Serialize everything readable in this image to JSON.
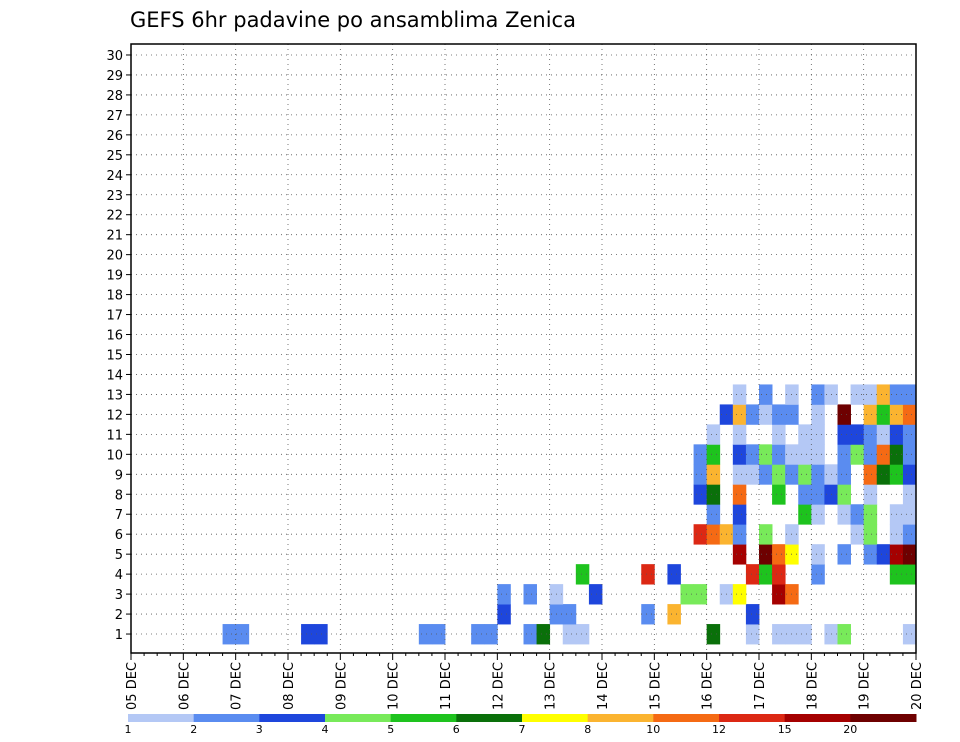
{
  "chart_data": {
    "type": "heatmap",
    "title": "GEFS 6hr padavine po ansamblima Zenica",
    "members": [
      1,
      2,
      3,
      4,
      5,
      6,
      7,
      8,
      9,
      10,
      11,
      12,
      13,
      14,
      15,
      16,
      17,
      18,
      19,
      20,
      21,
      22,
      23,
      24,
      25,
      26,
      27,
      28,
      29,
      30
    ],
    "x_labels": [
      "05 DEC",
      "06 DEC",
      "07 DEC",
      "08 DEC",
      "09 DEC",
      "10 DEC",
      "11 DEC",
      "12 DEC",
      "13 DEC",
      "14 DEC",
      "15 DEC",
      "16 DEC",
      "17 DEC",
      "18 DEC",
      "19 DEC",
      "20 DEC"
    ],
    "x_range_steps": [
      0,
      60
    ],
    "grid": true,
    "colorbar": {
      "ticks": [
        "1",
        "2",
        "3",
        "4",
        "5",
        "6",
        "7",
        "8",
        "10",
        "12",
        "15",
        "20"
      ],
      "colors": [
        "#b4c8f5",
        "#5a8cf0",
        "#1e46dc",
        "#78ea5a",
        "#1ec31e",
        "#0a700a",
        "#ffff00",
        "#fbb430",
        "#f56a14",
        "#dc2814",
        "#a50000",
        "#6e0000"
      ]
    },
    "cells": [
      [
        1,
        8,
        2
      ],
      [
        1,
        9,
        2
      ],
      [
        1,
        14,
        3
      ],
      [
        1,
        15,
        3
      ],
      [
        1,
        23,
        2
      ],
      [
        1,
        24,
        2
      ],
      [
        1,
        27,
        2
      ],
      [
        1,
        28,
        2
      ],
      [
        1,
        31,
        2
      ],
      [
        1,
        32,
        6
      ],
      [
        1,
        34,
        1
      ],
      [
        1,
        35,
        1
      ],
      [
        1,
        45,
        6
      ],
      [
        1,
        48,
        1
      ],
      [
        1,
        50,
        1
      ],
      [
        1,
        51,
        1
      ],
      [
        1,
        52,
        1
      ],
      [
        1,
        54,
        1
      ],
      [
        1,
        55,
        4
      ],
      [
        1,
        60,
        1
      ],
      [
        2,
        29,
        3
      ],
      [
        2,
        33,
        2
      ],
      [
        2,
        34,
        2
      ],
      [
        2,
        40,
        2
      ],
      [
        2,
        42,
        8
      ],
      [
        2,
        48,
        3
      ],
      [
        3,
        29,
        2
      ],
      [
        3,
        31,
        2
      ],
      [
        3,
        33,
        1
      ],
      [
        3,
        36,
        3
      ],
      [
        3,
        43,
        4
      ],
      [
        3,
        44,
        4
      ],
      [
        3,
        46,
        1
      ],
      [
        3,
        47,
        7
      ],
      [
        3,
        50,
        11
      ],
      [
        3,
        51,
        9
      ],
      [
        4,
        35,
        5
      ],
      [
        4,
        40,
        10
      ],
      [
        4,
        42,
        3
      ],
      [
        4,
        48,
        10
      ],
      [
        4,
        49,
        5
      ],
      [
        4,
        50,
        10
      ],
      [
        4,
        53,
        2
      ],
      [
        4,
        59,
        5
      ],
      [
        4,
        60,
        5
      ],
      [
        5,
        47,
        11
      ],
      [
        5,
        49,
        12
      ],
      [
        5,
        50,
        9
      ],
      [
        5,
        51,
        7
      ],
      [
        5,
        53,
        1
      ],
      [
        5,
        55,
        2
      ],
      [
        5,
        57,
        2
      ],
      [
        5,
        58,
        3
      ],
      [
        5,
        59,
        11
      ],
      [
        5,
        60,
        12
      ],
      [
        6,
        44,
        10
      ],
      [
        6,
        45,
        9
      ],
      [
        6,
        46,
        8
      ],
      [
        6,
        47,
        2
      ],
      [
        6,
        49,
        4
      ],
      [
        6,
        51,
        1
      ],
      [
        6,
        56,
        1
      ],
      [
        6,
        57,
        4
      ],
      [
        6,
        59,
        1
      ],
      [
        6,
        60,
        2
      ],
      [
        7,
        45,
        2
      ],
      [
        7,
        47,
        3
      ],
      [
        7,
        52,
        5
      ],
      [
        7,
        53,
        1
      ],
      [
        7,
        55,
        1
      ],
      [
        7,
        56,
        2
      ],
      [
        7,
        57,
        4
      ],
      [
        7,
        59,
        1
      ],
      [
        7,
        60,
        1
      ],
      [
        8,
        44,
        3
      ],
      [
        8,
        45,
        6
      ],
      [
        8,
        47,
        9
      ],
      [
        8,
        50,
        5
      ],
      [
        8,
        52,
        2
      ],
      [
        8,
        53,
        2
      ],
      [
        8,
        54,
        3
      ],
      [
        8,
        55,
        4
      ],
      [
        8,
        57,
        1
      ],
      [
        8,
        60,
        1
      ],
      [
        9,
        44,
        2
      ],
      [
        9,
        45,
        8
      ],
      [
        9,
        47,
        1
      ],
      [
        9,
        48,
        1
      ],
      [
        9,
        49,
        2
      ],
      [
        9,
        50,
        4
      ],
      [
        9,
        51,
        2
      ],
      [
        9,
        52,
        4
      ],
      [
        9,
        53,
        2
      ],
      [
        9,
        54,
        1
      ],
      [
        9,
        55,
        2
      ],
      [
        9,
        57,
        9
      ],
      [
        9,
        58,
        6
      ],
      [
        9,
        59,
        5
      ],
      [
        9,
        60,
        3
      ],
      [
        10,
        44,
        2
      ],
      [
        10,
        45,
        5
      ],
      [
        10,
        47,
        3
      ],
      [
        10,
        48,
        2
      ],
      [
        10,
        49,
        4
      ],
      [
        10,
        50,
        2
      ],
      [
        10,
        51,
        1
      ],
      [
        10,
        52,
        1
      ],
      [
        10,
        53,
        1
      ],
      [
        10,
        55,
        2
      ],
      [
        10,
        56,
        4
      ],
      [
        10,
        57,
        2
      ],
      [
        10,
        58,
        9
      ],
      [
        10,
        59,
        6
      ],
      [
        10,
        60,
        2
      ],
      [
        11,
        45,
        1
      ],
      [
        11,
        47,
        1
      ],
      [
        11,
        50,
        1
      ],
      [
        11,
        52,
        1
      ],
      [
        11,
        53,
        1
      ],
      [
        11,
        55,
        3
      ],
      [
        11,
        56,
        3
      ],
      [
        11,
        57,
        2
      ],
      [
        11,
        58,
        1
      ],
      [
        11,
        59,
        3
      ],
      [
        11,
        60,
        2
      ],
      [
        12,
        46,
        3
      ],
      [
        12,
        47,
        8
      ],
      [
        12,
        48,
        2
      ],
      [
        12,
        49,
        1
      ],
      [
        12,
        50,
        2
      ],
      [
        12,
        51,
        2
      ],
      [
        12,
        53,
        1
      ],
      [
        12,
        55,
        12
      ],
      [
        12,
        57,
        8
      ],
      [
        12,
        58,
        5
      ],
      [
        12,
        59,
        8
      ],
      [
        12,
        60,
        9
      ],
      [
        13,
        47,
        1
      ],
      [
        13,
        49,
        2
      ],
      [
        13,
        51,
        1
      ],
      [
        13,
        53,
        2
      ],
      [
        13,
        54,
        1
      ],
      [
        13,
        56,
        1
      ],
      [
        13,
        57,
        1
      ],
      [
        13,
        58,
        8
      ],
      [
        13,
        59,
        2
      ],
      [
        13,
        60,
        2
      ]
    ]
  }
}
